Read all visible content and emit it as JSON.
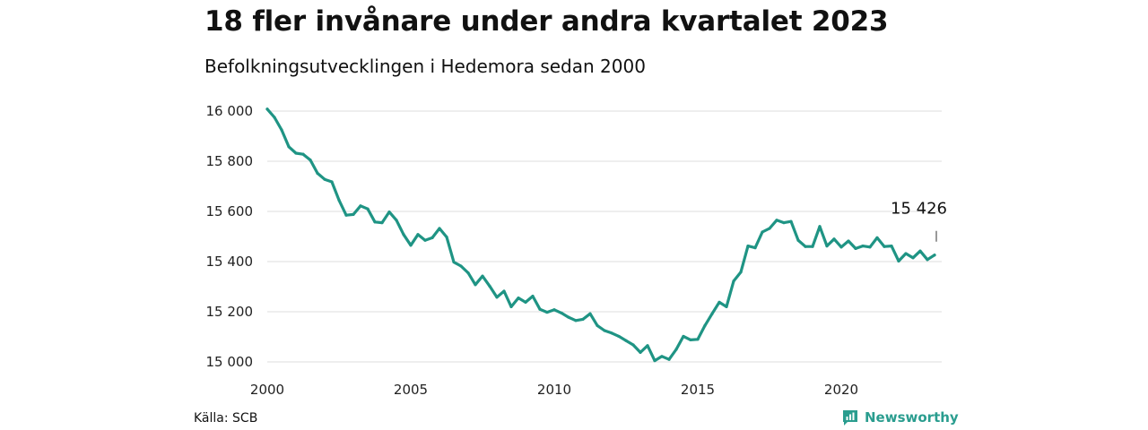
{
  "title": "18 fler invånare under andra kvartalet 2023",
  "subtitle": "Befolkningsutvecklingen i Hedemora sedan 2000",
  "source": "Källa: SCB",
  "brand": {
    "name": "Newsworthy",
    "icon": "newsworthy-logo-icon",
    "color": "#2a9d8f"
  },
  "colors": {
    "line": "#1f9484",
    "grid": "#dddddd"
  },
  "chart_data": {
    "type": "line",
    "title": "18 fler invånare under andra kvartalet 2023",
    "subtitle": "Befolkningsutvecklingen i Hedemora sedan 2000",
    "xlabel": "",
    "ylabel": "",
    "xlim": [
      2000,
      2023.5
    ],
    "ylim": [
      15000,
      16000
    ],
    "grid": true,
    "legend": "none",
    "x_ticks": [
      2000,
      2005,
      2010,
      2015,
      2020
    ],
    "x_tick_labels": [
      "2000",
      "2005",
      "2010",
      "2015",
      "2020"
    ],
    "y_ticks": [
      15000,
      15200,
      15400,
      15600,
      15800,
      16000
    ],
    "y_tick_labels": [
      "15 000",
      "15 200",
      "15 400",
      "15 600",
      "15 800",
      "16 000"
    ],
    "end_label": "15 426",
    "series": [
      {
        "x": [
          2000.0,
          2000.25,
          2000.5,
          2000.75,
          2001.0,
          2001.25,
          2001.5,
          2001.75,
          2002.0,
          2002.25,
          2002.5,
          2002.75,
          2003.0,
          2003.25,
          2003.5,
          2003.75,
          2004.0,
          2004.25,
          2004.5,
          2004.75,
          2005.0,
          2005.25,
          2005.5,
          2005.75,
          2006.0,
          2006.25,
          2006.5,
          2006.75,
          2007.0,
          2007.25,
          2007.5,
          2007.75,
          2008.0,
          2008.25,
          2008.5,
          2008.75,
          2009.0,
          2009.25,
          2009.5,
          2009.75,
          2010.0,
          2010.25,
          2010.5,
          2010.75,
          2011.0,
          2011.25,
          2011.5,
          2011.75,
          2012.0,
          2012.25,
          2012.5,
          2012.75,
          2013.0,
          2013.25,
          2013.5,
          2013.75,
          2014.0,
          2014.25,
          2014.5,
          2014.75,
          2015.0,
          2015.25,
          2015.5,
          2015.75,
          2016.0,
          2016.25,
          2016.5,
          2016.75,
          2017.0,
          2017.25,
          2017.5,
          2017.75,
          2018.0,
          2018.25,
          2018.5,
          2018.75,
          2019.0,
          2019.25,
          2019.5,
          2019.75,
          2020.0,
          2020.25,
          2020.5,
          2020.75,
          2021.0,
          2021.25,
          2021.5,
          2021.75,
          2022.0,
          2022.25,
          2022.5,
          2022.75,
          2023.0,
          2023.25
        ],
        "values": [
          16008,
          15975,
          15925,
          15858,
          15832,
          15828,
          15805,
          15752,
          15728,
          15718,
          15645,
          15585,
          15588,
          15622,
          15610,
          15558,
          15555,
          15598,
          15565,
          15508,
          15465,
          15508,
          15485,
          15495,
          15532,
          15498,
          15398,
          15382,
          15355,
          15308,
          15342,
          15302,
          15258,
          15282,
          15220,
          15255,
          15238,
          15262,
          15210,
          15198,
          15208,
          15195,
          15178,
          15165,
          15170,
          15192,
          15145,
          15125,
          15115,
          15102,
          15085,
          15068,
          15038,
          15065,
          15005,
          15022,
          15010,
          15050,
          15102,
          15088,
          15090,
          15145,
          15192,
          15238,
          15220,
          15322,
          15358,
          15462,
          15455,
          15518,
          15532,
          15565,
          15555,
          15560,
          15485,
          15460,
          15460,
          15540,
          15462,
          15490,
          15458,
          15482,
          15452,
          15462,
          15458,
          15495,
          15460,
          15462,
          15402,
          15432,
          15415,
          15442,
          15408,
          15426
        ]
      }
    ]
  }
}
